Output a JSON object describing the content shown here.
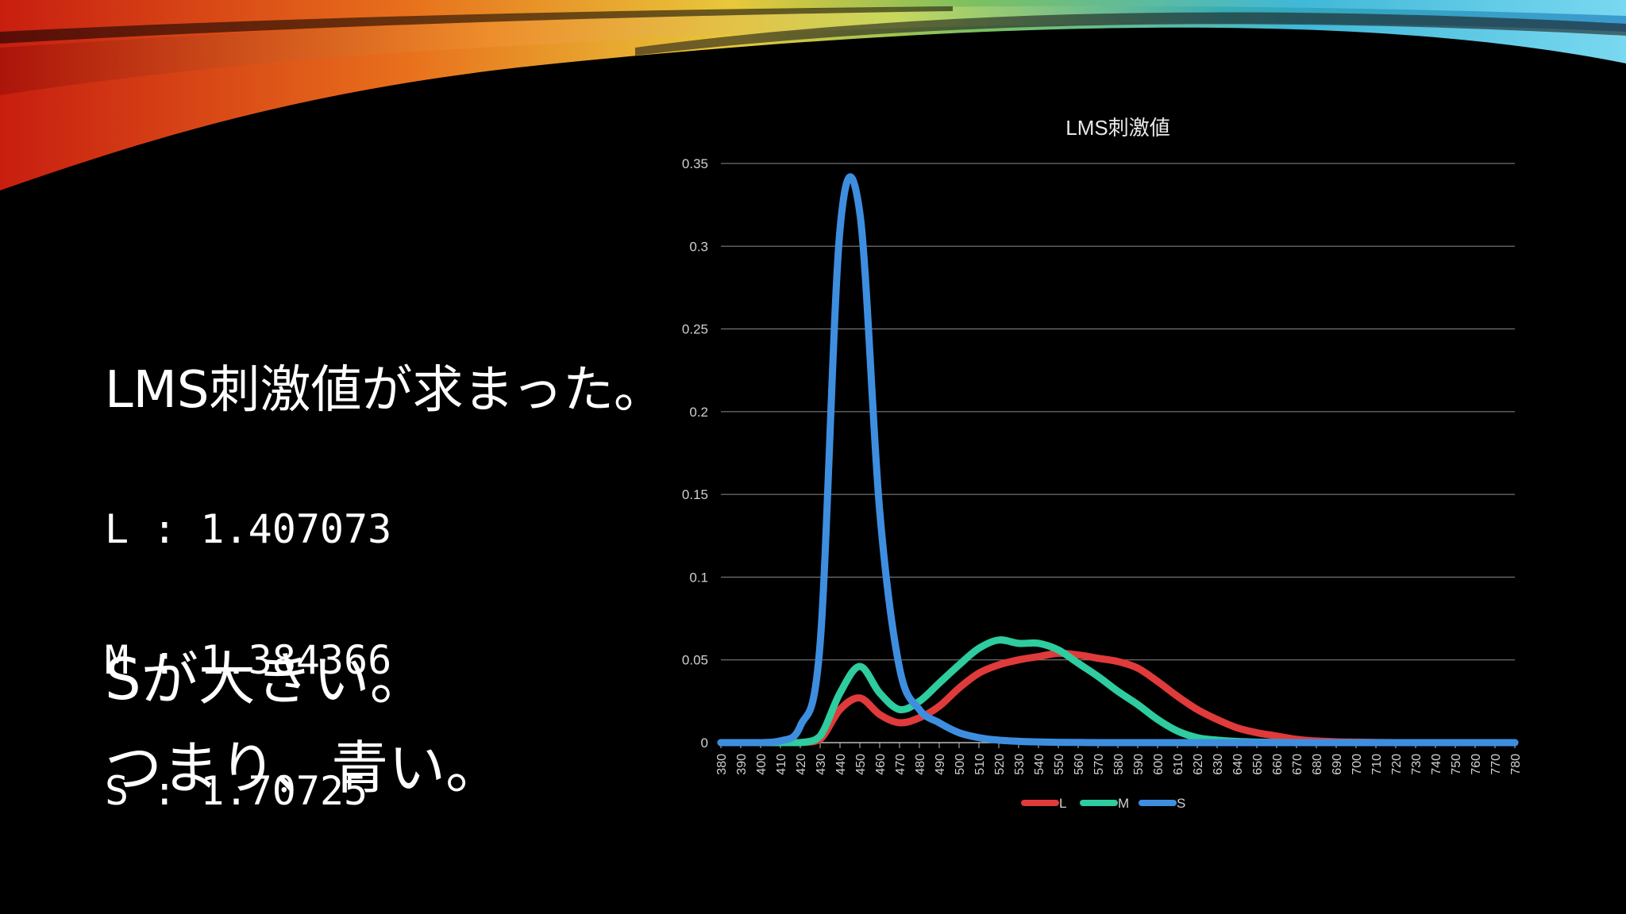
{
  "slide": {
    "heading": "LMS刺激値が求まった。",
    "values": [
      {
        "label": "L",
        "sep": " : ",
        "value": "1.407073"
      },
      {
        "label": "M",
        "sep": " : ",
        "value": "1.384366"
      },
      {
        "label": "S",
        "sep": " : ",
        "value": "1.70725"
      }
    ],
    "conclusion_line1": "Sが大きい。",
    "conclusion_line2": "つまり、青い。"
  },
  "chart_data": {
    "type": "line",
    "title": "LMS刺激値",
    "xlabel": "",
    "ylabel": "",
    "ylim": [
      0,
      0.35
    ],
    "yticks": [
      "0",
      "0.05",
      "0.1",
      "0.15",
      "0.2",
      "0.25",
      "0.3",
      "0.35"
    ],
    "grid": true,
    "legend": "bottom",
    "x": [
      380,
      390,
      400,
      410,
      420,
      430,
      440,
      450,
      460,
      470,
      480,
      490,
      500,
      510,
      520,
      530,
      540,
      550,
      560,
      570,
      580,
      590,
      600,
      610,
      620,
      630,
      640,
      650,
      660,
      670,
      680,
      690,
      700,
      710,
      720,
      730,
      740,
      750,
      760,
      770,
      780
    ],
    "series": [
      {
        "name": "L",
        "color": "#e03a3a",
        "values": [
          0,
          0,
          0,
          0,
          0,
          0.002,
          0.02,
          0.027,
          0.017,
          0.012,
          0.015,
          0.022,
          0.033,
          0.042,
          0.047,
          0.05,
          0.052,
          0.054,
          0.053,
          0.051,
          0.049,
          0.045,
          0.037,
          0.028,
          0.02,
          0.014,
          0.009,
          0.006,
          0.004,
          0.002,
          0.001,
          0.0005,
          0.0003,
          0.0001,
          0,
          0,
          0,
          0,
          0,
          0,
          0
        ]
      },
      {
        "name": "M",
        "color": "#2ecc9e",
        "values": [
          0,
          0,
          0,
          0,
          0,
          0.004,
          0.03,
          0.046,
          0.03,
          0.02,
          0.025,
          0.036,
          0.047,
          0.057,
          0.062,
          0.06,
          0.06,
          0.056,
          0.048,
          0.04,
          0.031,
          0.023,
          0.014,
          0.007,
          0.003,
          0.0015,
          0.0007,
          0.0003,
          0.0001,
          0,
          0,
          0,
          0,
          0,
          0,
          0,
          0,
          0,
          0,
          0,
          0
        ]
      },
      {
        "name": "S",
        "color": "#3e8ee0",
        "values": [
          0,
          0,
          0,
          0.001,
          0.01,
          0.06,
          0.31,
          0.32,
          0.14,
          0.045,
          0.02,
          0.012,
          0.006,
          0.003,
          0.0015,
          0.0008,
          0.0004,
          0.0002,
          0.0001,
          0,
          0,
          0,
          0,
          0,
          0,
          0,
          0,
          0,
          0,
          0,
          0,
          0,
          0,
          0,
          0,
          0,
          0,
          0,
          0,
          0,
          0
        ]
      }
    ]
  }
}
